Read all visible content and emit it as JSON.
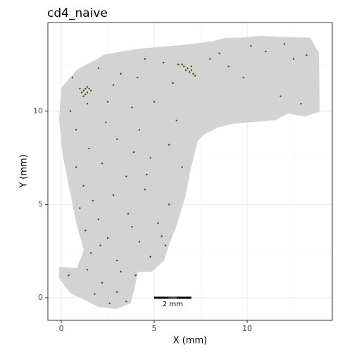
{
  "chart_data": {
    "type": "scatter",
    "title": "cd4_naive",
    "xlabel": "X (mm)",
    "ylabel": "Y (mm)",
    "xlim": [
      -0.72,
      14.58
    ],
    "ylim": [
      -1.21,
      14.75
    ],
    "xticks": [
      0,
      5,
      10
    ],
    "yticks": [
      0,
      5,
      10
    ],
    "xminor": [
      2.5,
      7.5,
      12.5
    ],
    "yminor": [
      2.5,
      7.5,
      12.5
    ],
    "grid": true,
    "series": [
      {
        "color": "#d3d3d3",
        "fill": true,
        "x": [
          0.04,
          0.87,
          2.39,
          4.28,
          6.55,
          8.07,
          8.83,
          9.58,
          10.72,
          13.37,
          13.83,
          13.86,
          13.07,
          12.23,
          11.48,
          9.2,
          8.45,
          7.69,
          7.31,
          6.93,
          6.63,
          6.17,
          5.8,
          5.49,
          4.85,
          4.09,
          3.9,
          3.71,
          2.95,
          2.01,
          0.49,
          -0.08,
          -0.08,
          0.87,
          1.25,
          0.87,
          0.49,
          0.11,
          -0.08
        ],
        "y": [
          11.25,
          12.19,
          13.02,
          13.32,
          13.51,
          13.7,
          13.89,
          13.89,
          14.0,
          13.89,
          13.13,
          10.0,
          9.74,
          9.92,
          9.55,
          9.36,
          9.17,
          8.79,
          8.42,
          6.91,
          5.4,
          3.89,
          2.94,
          2.0,
          1.43,
          1.43,
          0.49,
          -0.26,
          -0.57,
          -0.45,
          0.3,
          1.06,
          1.62,
          1.55,
          2.57,
          3.89,
          5.77,
          7.66,
          9.55
        ]
      },
      {
        "color": "#3b4d00",
        "fill": false,
        "x": [
          1.2,
          1.3,
          1.4,
          1.1,
          1.5,
          1.3,
          1.6,
          1.0,
          1.4,
          1.2,
          6.6,
          6.8,
          7.0,
          7.1,
          6.9,
          7.2,
          6.5,
          6.7,
          7.0,
          6.3,
          0.5,
          2.0,
          3.2,
          4.5,
          5.5,
          6.0,
          8.5,
          10.2,
          11.0,
          12.5,
          13.2,
          9.8,
          11.8,
          2.5,
          3.8,
          5.0,
          6.2,
          4.2,
          3.0,
          1.5,
          0.8,
          2.2,
          4.8,
          6.5,
          3.5,
          1.2,
          2.8,
          4.5,
          5.8,
          1.0,
          2.0,
          3.6,
          5.2,
          1.3,
          2.5,
          4.2,
          5.4,
          1.6,
          3.0,
          4.8,
          0.4,
          1.4,
          2.2,
          3.0,
          3.5,
          2.6,
          1.8,
          4.0,
          3.2,
          0.8,
          1.4,
          2.8,
          4.1,
          5.8,
          3.9,
          2.4,
          4.6,
          2.1,
          3.8,
          5.6,
          1.7,
          0.6,
          8.0,
          9.0,
          12.0,
          12.9
        ],
        "y": [
          11.1,
          11.2,
          11.0,
          11.0,
          11.2,
          10.9,
          11.1,
          11.2,
          11.3,
          10.8,
          12.4,
          12.3,
          12.2,
          12.0,
          12.1,
          11.9,
          12.5,
          12.2,
          12.4,
          12.5,
          10.0,
          12.3,
          12.0,
          12.8,
          12.6,
          11.5,
          13.1,
          13.5,
          13.2,
          12.8,
          13.0,
          11.8,
          10.8,
          10.5,
          10.2,
          10.5,
          9.5,
          9.0,
          8.5,
          8.0,
          9.0,
          7.2,
          7.5,
          7.0,
          6.5,
          6.0,
          5.5,
          5.8,
          5.0,
          4.8,
          4.2,
          4.5,
          4.0,
          3.6,
          3.2,
          3.0,
          3.3,
          2.4,
          2.0,
          2.2,
          1.2,
          1.5,
          0.8,
          0.3,
          -0.2,
          -0.3,
          0.2,
          1.2,
          1.4,
          7.0,
          10.4,
          11.4,
          11.8,
          8.2,
          7.8,
          9.4,
          6.6,
          2.8,
          3.8,
          2.8,
          5.2,
          11.8,
          12.8,
          12.4,
          13.6,
          10.4
        ]
      }
    ],
    "annotations": [
      {
        "text": "2 mm",
        "x": [
          5,
          7
        ],
        "y": 0
      }
    ]
  }
}
